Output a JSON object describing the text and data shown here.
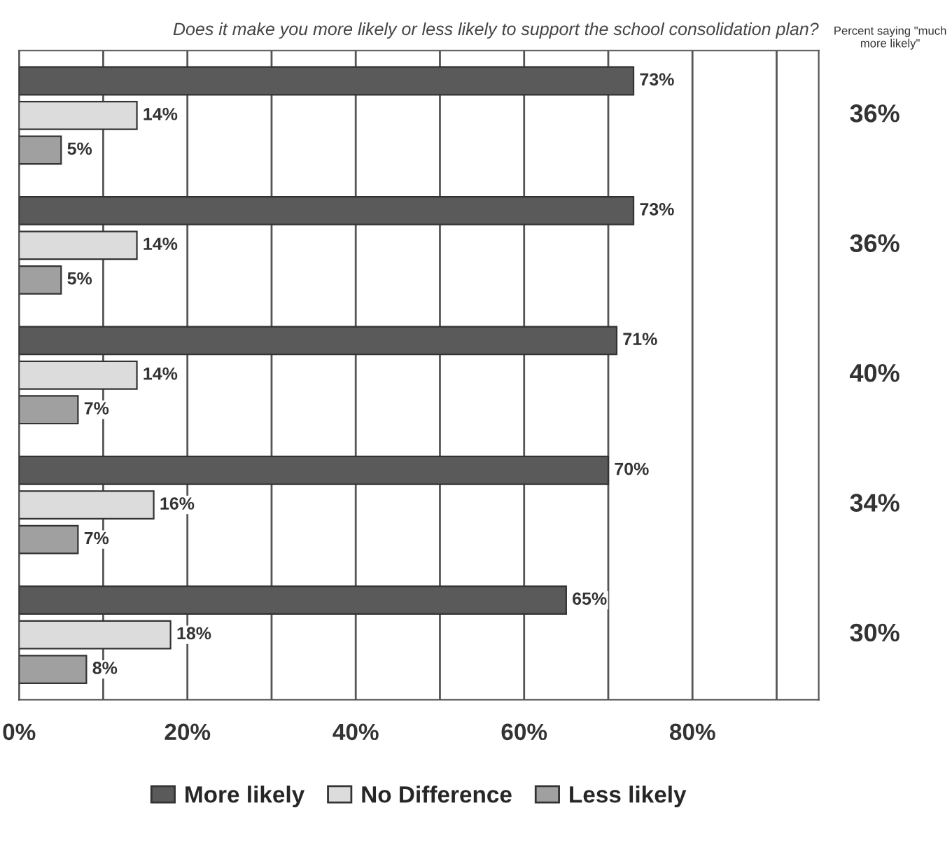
{
  "chart_data": {
    "type": "bar",
    "orientation": "horizontal",
    "title": "Does it make you more likely or less likely to support the school consolidation plan?",
    "categories": [
      null,
      null,
      null,
      null,
      null
    ],
    "series": [
      {
        "name": "More likely",
        "color": "#5a5a5a",
        "values": [
          73,
          73,
          71,
          70,
          65
        ],
        "value_labels": [
          "73%",
          "73%",
          "71%",
          "70%",
          "65%"
        ]
      },
      {
        "name": "No Difference",
        "color": "#dcdcdc",
        "values": [
          14,
          14,
          14,
          16,
          18
        ],
        "value_labels": [
          "14%",
          "14%",
          "14%",
          "16%",
          "18%"
        ]
      },
      {
        "name": "Less likely",
        "color": "#a0a0a0",
        "values": [
          5,
          5,
          7,
          7,
          8
        ],
        "value_labels": [
          "5%",
          "5%",
          "7%",
          "7%",
          "8%"
        ]
      }
    ],
    "xlim": [
      0,
      95
    ],
    "xticks": [
      {
        "value": 0,
        "label": "0%"
      },
      {
        "value": 10,
        "label": null
      },
      {
        "value": 20,
        "label": "20%"
      },
      {
        "value": 30,
        "label": null
      },
      {
        "value": 40,
        "label": "40%"
      },
      {
        "value": 50,
        "label": null
      },
      {
        "value": 60,
        "label": "60%"
      },
      {
        "value": 70,
        "label": null
      },
      {
        "value": 80,
        "label": "80%"
      },
      {
        "value": 90,
        "label": null
      }
    ],
    "grid": "x",
    "legend": "bottom",
    "annotations": [
      "Percent saying \"much more likely\"",
      "36%",
      "36%",
      "40%",
      "34%",
      "30%"
    ]
  }
}
